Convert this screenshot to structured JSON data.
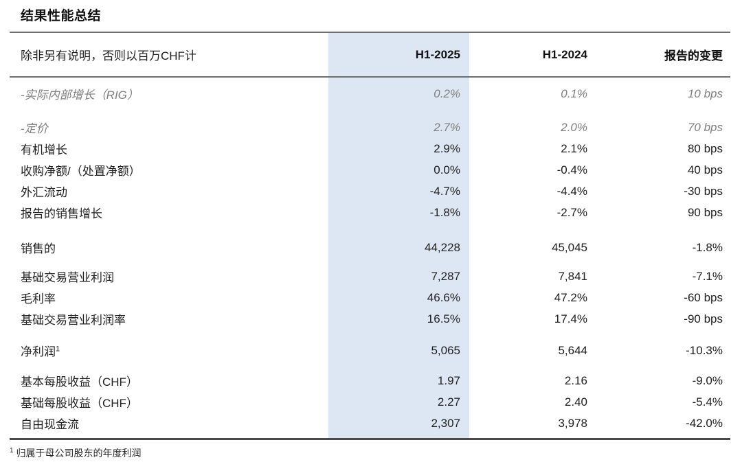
{
  "title": "结果性能总结",
  "table": {
    "unit_note": "除非另有说明，否则以百万CHF计",
    "columns": [
      "H1-2025",
      "H1-2024",
      "报告的变更"
    ],
    "highlight_color": "#dce7f3",
    "rows": [
      {
        "label": "-实际内部增长（RIG）",
        "h1_2025": "0.2%",
        "h1_2024": "0.1%",
        "change": "10 bps"
      },
      {
        "label": "-定价",
        "h1_2025": "2.7%",
        "h1_2024": "2.0%",
        "change": "70 bps"
      },
      {
        "label": "有机增长",
        "h1_2025": "2.9%",
        "h1_2024": "2.1%",
        "change": "80 bps"
      },
      {
        "label": "收购净额/（处置净额）",
        "h1_2025": "0.0%",
        "h1_2024": "-0.4%",
        "change": "40 bps"
      },
      {
        "label": "外汇流动",
        "h1_2025": "-4.7%",
        "h1_2024": "-4.4%",
        "change": "-30 bps"
      },
      {
        "label": "报告的销售增长",
        "h1_2025": "-1.8%",
        "h1_2024": "-2.7%",
        "change": "90 bps"
      },
      {
        "label": "销售的",
        "h1_2025": "44,228",
        "h1_2024": "45,045",
        "change": "-1.8%"
      },
      {
        "label": "基础交易营业利润",
        "h1_2025": "7,287",
        "h1_2024": "7,841",
        "change": "-7.1%"
      },
      {
        "label": "毛利率",
        "h1_2025": "46.6%",
        "h1_2024": "47.2%",
        "change": "-60 bps"
      },
      {
        "label": "基础交易营业利润率",
        "h1_2025": "16.5%",
        "h1_2024": "17.4%",
        "change": "-90 bps"
      },
      {
        "label": "净利润",
        "label_sup": "1",
        "h1_2025": "5,065",
        "h1_2024": "5,644",
        "change": "-10.3%"
      },
      {
        "label": "基本每股收益（CHF）",
        "h1_2025": "1.97",
        "h1_2024": "2.16",
        "change": "-9.0%"
      },
      {
        "label": "基础每股收益（CHF）",
        "h1_2025": "2.27",
        "h1_2024": "2.40",
        "change": "-5.4%"
      },
      {
        "label": "自由现金流",
        "h1_2025": "2,307",
        "h1_2024": "3,978",
        "change": "-42.0%"
      }
    ]
  },
  "footnote": {
    "marker": "1",
    "text": "归属于母公司股东的年度利润"
  }
}
